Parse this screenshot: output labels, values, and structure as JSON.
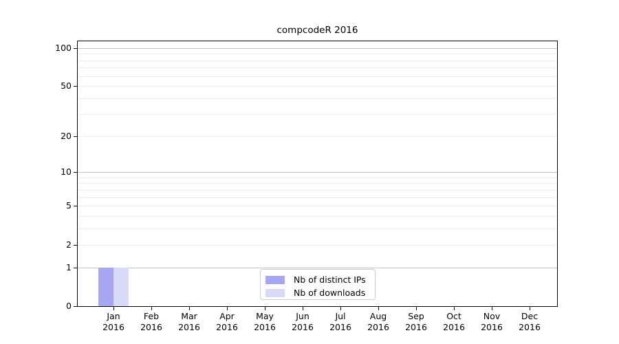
{
  "title": "compcodeR 2016",
  "chart_data": {
    "type": "bar",
    "title": "compcodeR 2016",
    "categories": [
      "Jan",
      "Feb",
      "Mar",
      "Apr",
      "May",
      "Jun",
      "Jul",
      "Aug",
      "Sep",
      "Oct",
      "Nov",
      "Dec"
    ],
    "x_year": "2016",
    "series": [
      {
        "name": "Nb of distinct IPs",
        "color": "#a6a6f2",
        "values": [
          1,
          0,
          0,
          0,
          0,
          0,
          0,
          0,
          0,
          0,
          0,
          0
        ]
      },
      {
        "name": "Nb of downloads",
        "color": "#d9d9f8",
        "values": [
          1,
          0,
          0,
          0,
          0,
          0,
          0,
          0,
          0,
          0,
          0,
          0
        ]
      }
    ],
    "y_scale": "log10(1+v)",
    "ylim": [
      0,
      113
    ],
    "y_tick_values": [
      0,
      1,
      2,
      5,
      10,
      20,
      50,
      100
    ],
    "y_tick_labels": [
      "0",
      "1",
      "2",
      "5",
      "10",
      "20",
      "50",
      "100"
    ],
    "y_major_gridlines": [
      1,
      10,
      100
    ],
    "y_minor_gridlines": [
      2,
      3,
      4,
      5,
      6,
      7,
      8,
      9,
      20,
      30,
      40,
      50,
      60,
      70,
      80,
      90
    ],
    "grid": "horizontal",
    "legend_position": "bottom-center-inside",
    "xlabel": "",
    "ylabel": ""
  },
  "colors": {
    "background": "#ffffff",
    "axis": "#000000",
    "grid_major": "#c2c2c2",
    "grid_minor": "#ececec",
    "legend_border": "#cccccc",
    "bar_distinct_ips": "#a6a6f2",
    "bar_downloads": "#d9d9f8"
  }
}
